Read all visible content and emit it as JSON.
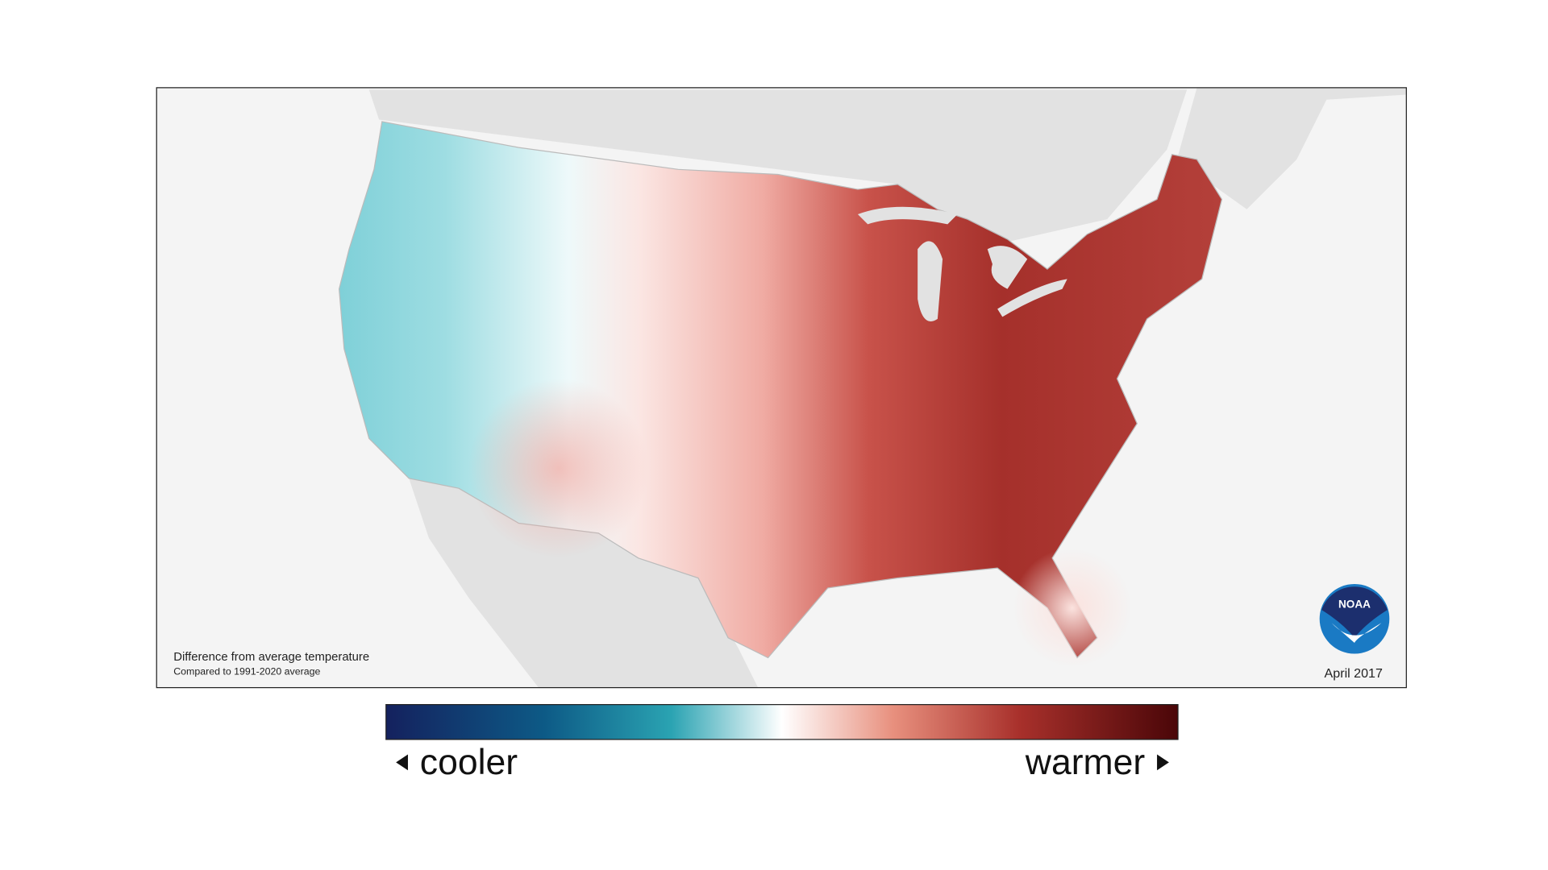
{
  "map": {
    "caption": "Difference from average temperature",
    "subcaption": "Compared to 1991-2020 average",
    "date": "April 2017",
    "logo": "NOAA",
    "legend": {
      "low": "cooler",
      "high": "warmer"
    }
  }
}
